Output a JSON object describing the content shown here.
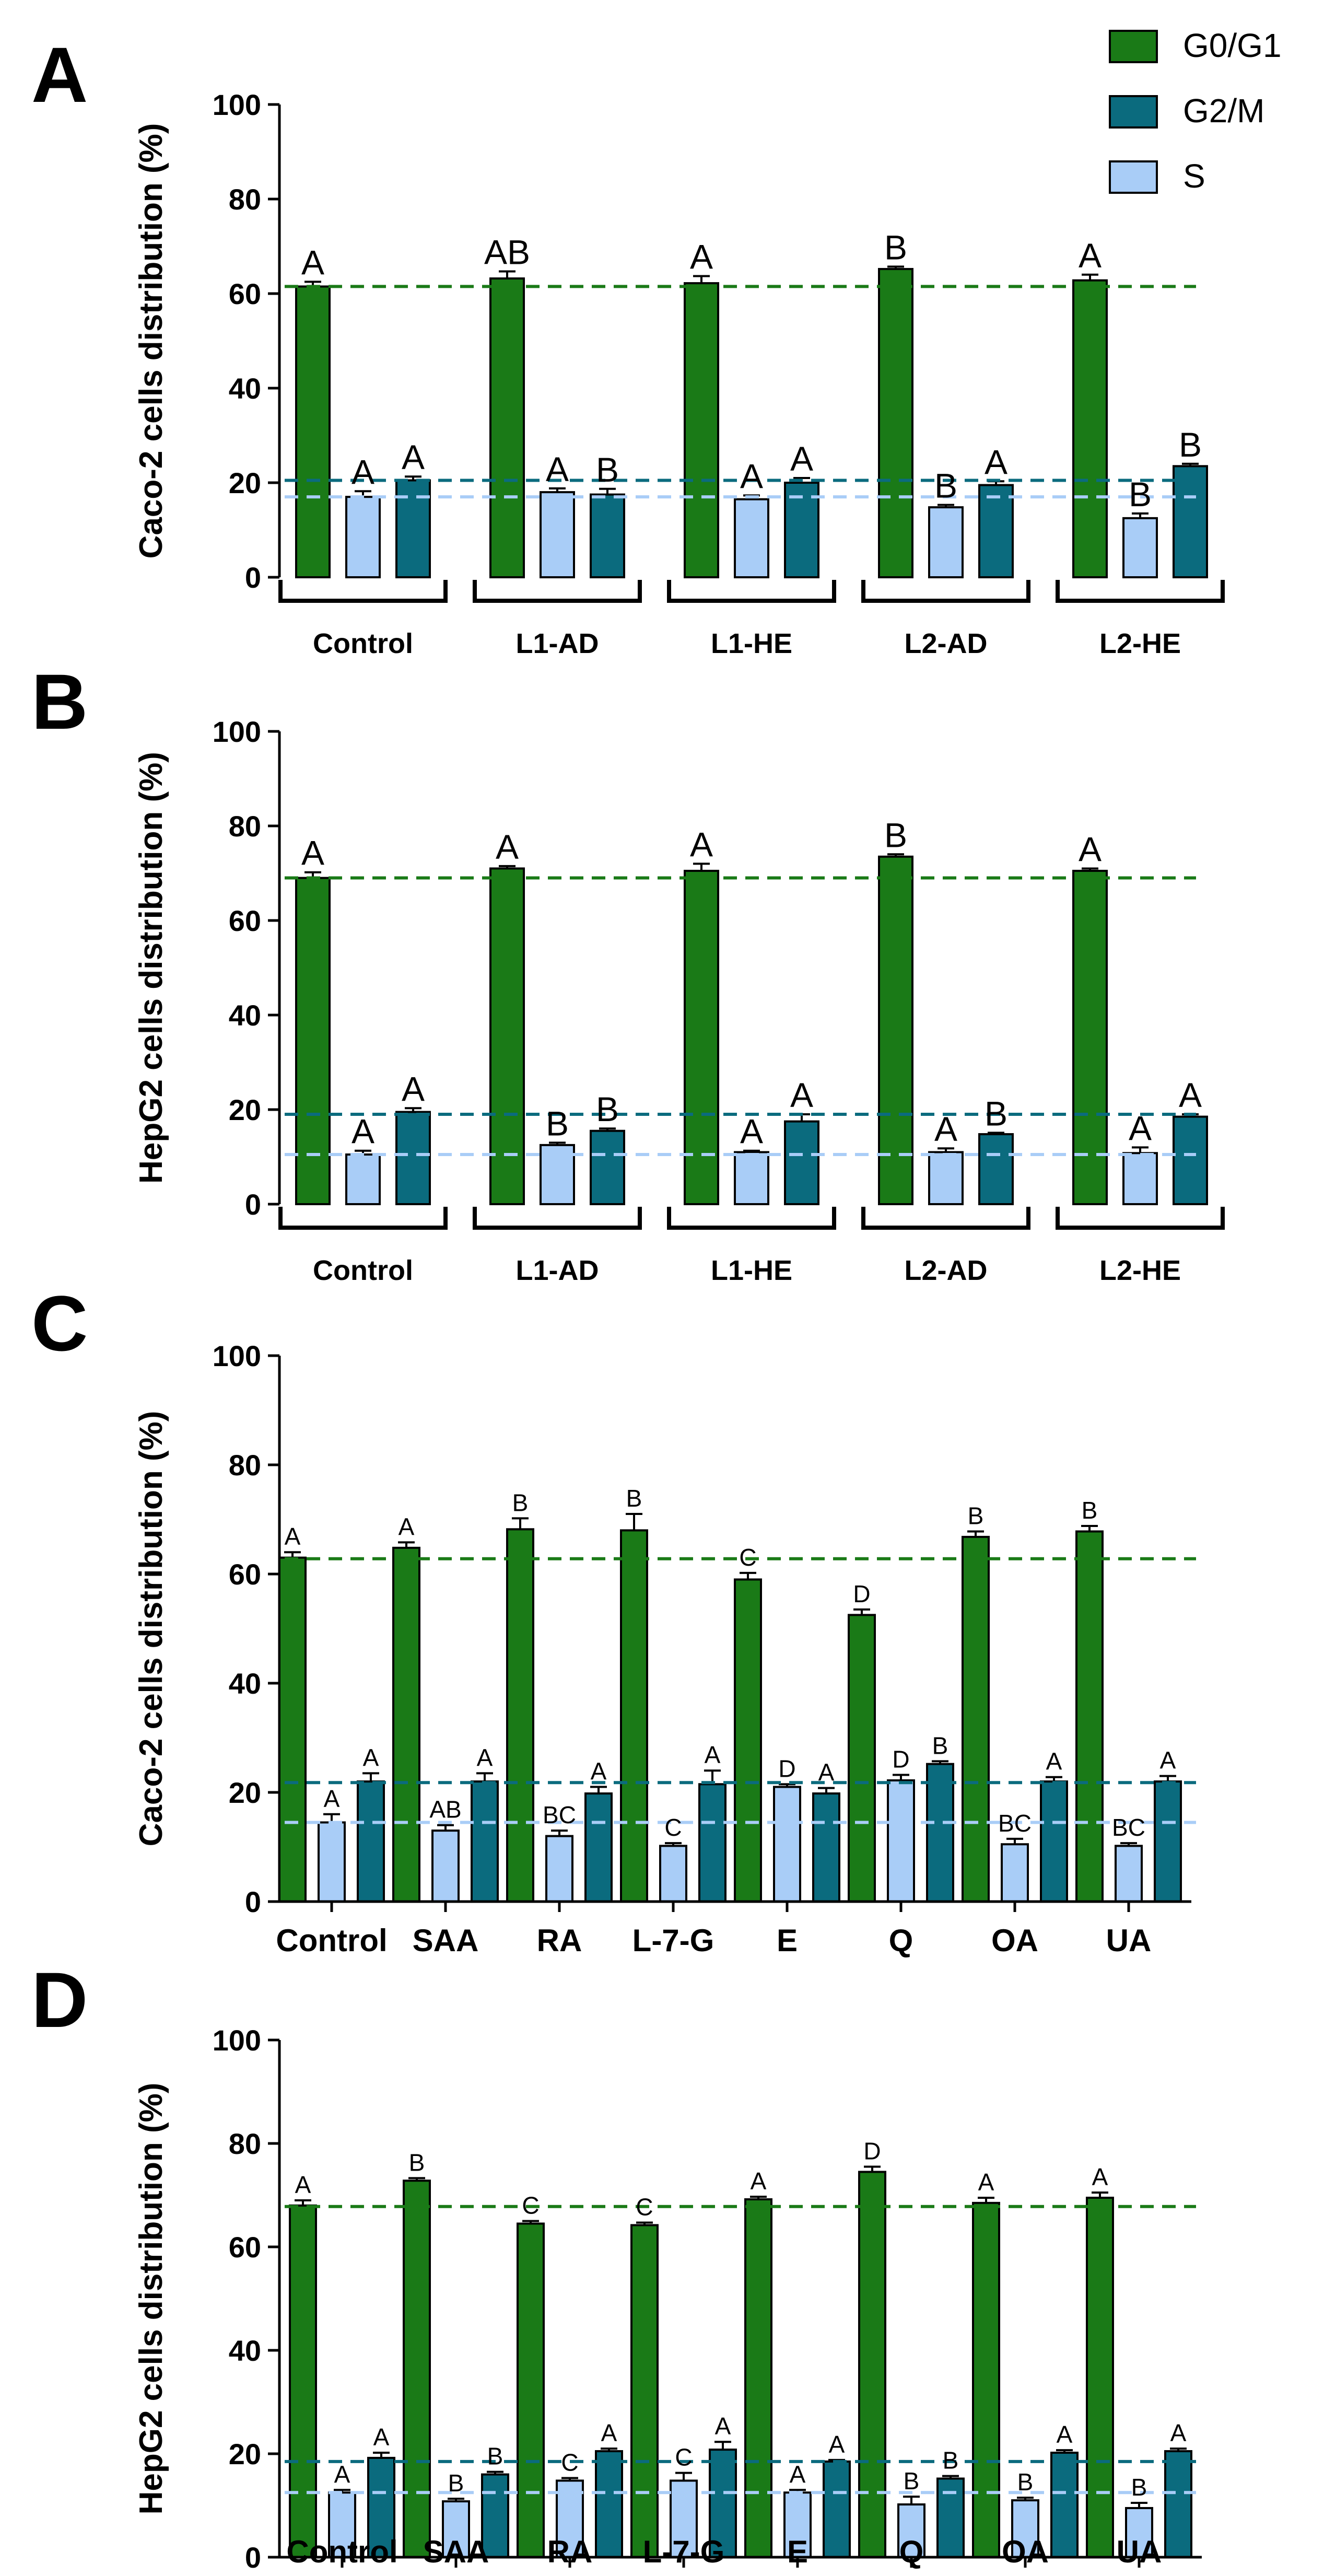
{
  "legend": [
    {
      "name": "G0/G1",
      "color": "#1a7a17"
    },
    {
      "name": "G2/M",
      "color": "#0b6b7e"
    },
    {
      "name": "S",
      "color": "#a9cdf7"
    }
  ],
  "colors": {
    "G0/G1": "#1a7a17",
    "G2/M": "#0b6b7e",
    "S": "#a9cdf7",
    "ref_G0/G1": "#1a7a17",
    "ref_G2/M": "#0b6b7e",
    "ref_S": "#a9cdf7",
    "axis": "#000000"
  },
  "chart_data": [
    {
      "panel": "A",
      "type": "bar",
      "ylabel": "Caco-2 cells distribution (%)",
      "ylim": [
        0,
        100
      ],
      "yticks": [
        0,
        20,
        40,
        60,
        80,
        100
      ],
      "category_style": "bracket",
      "series_order": [
        "G0/G1",
        "S",
        "G2/M"
      ],
      "categories": [
        "Control",
        "L1-AD",
        "L1-HE",
        "L2-AD",
        "L2-HE"
      ],
      "series": [
        {
          "name": "G0/G1",
          "values": [
            61.5,
            63.2,
            62.2,
            65.2,
            62.8
          ],
          "errors": [
            1.0,
            1.5,
            1.5,
            0.5,
            1.2
          ],
          "labels": [
            "A",
            "AB",
            "A",
            "B",
            "A"
          ]
        },
        {
          "name": "S",
          "values": [
            17.0,
            18.0,
            16.5,
            14.8,
            12.5
          ],
          "errors": [
            1.2,
            0.8,
            0.8,
            0.5,
            1.0
          ],
          "labels": [
            "A",
            "A",
            "A",
            "B",
            "B"
          ]
        },
        {
          "name": "G2/M",
          "values": [
            20.5,
            17.5,
            20.0,
            19.5,
            23.5
          ],
          "errors": [
            0.8,
            1.2,
            1.0,
            0.8,
            0.5
          ],
          "labels": [
            "A",
            "B",
            "A",
            "A",
            "B"
          ]
        }
      ],
      "reference_lines": {
        "G0/G1": 61.5,
        "G2/M": 20.5,
        "S": 17.0
      }
    },
    {
      "panel": "B",
      "type": "bar",
      "ylabel": "HepG2 cells distribution (%)",
      "ylim": [
        0,
        100
      ],
      "yticks": [
        0,
        20,
        40,
        60,
        80,
        100
      ],
      "category_style": "bracket",
      "series_order": [
        "G0/G1",
        "S",
        "G2/M"
      ],
      "categories": [
        "Control",
        "L1-AD",
        "L1-HE",
        "L2-AD",
        "L2-HE"
      ],
      "series": [
        {
          "name": "G0/G1",
          "values": [
            69.0,
            71.0,
            70.5,
            73.5,
            70.5
          ],
          "errors": [
            1.2,
            0.5,
            1.5,
            0.5,
            0.5
          ],
          "labels": [
            "A",
            "A",
            "A",
            "B",
            "A"
          ]
        },
        {
          "name": "S",
          "values": [
            10.5,
            12.5,
            11.0,
            11.0,
            10.8
          ],
          "errors": [
            0.8,
            0.5,
            0.3,
            0.8,
            1.2
          ],
          "labels": [
            "A",
            "B",
            "A",
            "A",
            "A"
          ]
        },
        {
          "name": "G2/M",
          "values": [
            19.5,
            15.5,
            17.5,
            14.8,
            18.5
          ],
          "errors": [
            0.8,
            0.5,
            1.5,
            0.3,
            0.5
          ],
          "labels": [
            "A",
            "B",
            "A",
            "B",
            "A"
          ]
        }
      ],
      "reference_lines": {
        "G0/G1": 69.0,
        "G2/M": 19.0,
        "S": 10.5
      }
    },
    {
      "panel": "C",
      "type": "bar",
      "ylabel": "Caco-2 cells distribution (%)",
      "ylim": [
        0,
        100
      ],
      "yticks": [
        0,
        20,
        40,
        60,
        80,
        100
      ],
      "category_style": "ticks",
      "series_order": [
        "G0/G1",
        "S",
        "G2/M"
      ],
      "categories": [
        "Control",
        "SAA",
        "RA",
        "L-7-G",
        "E",
        "Q",
        "OA",
        "UA"
      ],
      "series": [
        {
          "name": "G0/G1",
          "values": [
            63.0,
            64.8,
            68.2,
            68.0,
            59.0,
            52.5,
            66.8,
            67.8
          ],
          "errors": [
            1.0,
            1.0,
            2.0,
            3.0,
            1.2,
            1.0,
            1.0,
            1.0
          ],
          "labels": [
            "A",
            "A",
            "B",
            "B",
            "C",
            "D",
            "B",
            "B"
          ]
        },
        {
          "name": "S",
          "values": [
            14.5,
            13.0,
            12.0,
            10.2,
            21.0,
            22.2,
            10.5,
            10.2
          ],
          "errors": [
            1.5,
            1.0,
            1.0,
            0.5,
            0.5,
            1.0,
            1.0,
            0.5
          ],
          "labels": [
            "A",
            "AB",
            "BC",
            "C",
            "D",
            "D",
            "BC",
            "BC"
          ]
        },
        {
          "name": "G2/M",
          "values": [
            22.0,
            22.0,
            19.8,
            21.5,
            19.8,
            25.2,
            22.0,
            22.0
          ],
          "errors": [
            1.5,
            1.5,
            1.2,
            2.5,
            1.0,
            0.5,
            0.8,
            1.0
          ],
          "labels": [
            "A",
            "A",
            "A",
            "A",
            "A",
            "B",
            "A",
            "A"
          ]
        }
      ],
      "reference_lines": {
        "G0/G1": 62.8,
        "G2/M": 21.8,
        "S": 14.5
      }
    },
    {
      "panel": "D",
      "type": "bar",
      "ylabel": "HepG2 cells distribution (%)",
      "ylim": [
        0,
        100
      ],
      "yticks": [
        0,
        20,
        40,
        60,
        80,
        100
      ],
      "category_style": "ticks",
      "series_order": [
        "G0/G1",
        "S",
        "G2/M"
      ],
      "categories": [
        "Control",
        "SAA",
        "RA",
        "L-7-G",
        "E",
        "Q",
        "OA",
        "UA"
      ],
      "series": [
        {
          "name": "G0/G1",
          "values": [
            68.0,
            72.8,
            64.5,
            64.2,
            69.2,
            74.5,
            68.5,
            69.5
          ],
          "errors": [
            1.0,
            0.5,
            0.5,
            0.5,
            0.5,
            1.0,
            1.0,
            1.0
          ],
          "labels": [
            "A",
            "B",
            "C",
            "C",
            "A",
            "D",
            "A",
            "A"
          ]
        },
        {
          "name": "S",
          "values": [
            12.5,
            10.8,
            14.8,
            14.8,
            12.5,
            10.2,
            11.0,
            9.5
          ],
          "errors": [
            0.5,
            0.5,
            0.5,
            1.5,
            0.5,
            1.5,
            0.5,
            1.0
          ],
          "labels": [
            "A",
            "B",
            "C",
            "C",
            "A",
            "B",
            "B",
            "B"
          ]
        },
        {
          "name": "G2/M",
          "values": [
            19.2,
            16.0,
            20.5,
            20.8,
            18.5,
            15.2,
            20.2,
            20.5
          ],
          "errors": [
            1.0,
            0.5,
            0.5,
            1.5,
            0.3,
            0.5,
            0.5,
            0.5
          ],
          "labels": [
            "A",
            "B",
            "A",
            "A",
            "A",
            "B",
            "A",
            "A"
          ]
        }
      ],
      "reference_lines": {
        "G0/G1": 67.8,
        "G2/M": 18.5,
        "S": 12.5
      }
    }
  ]
}
